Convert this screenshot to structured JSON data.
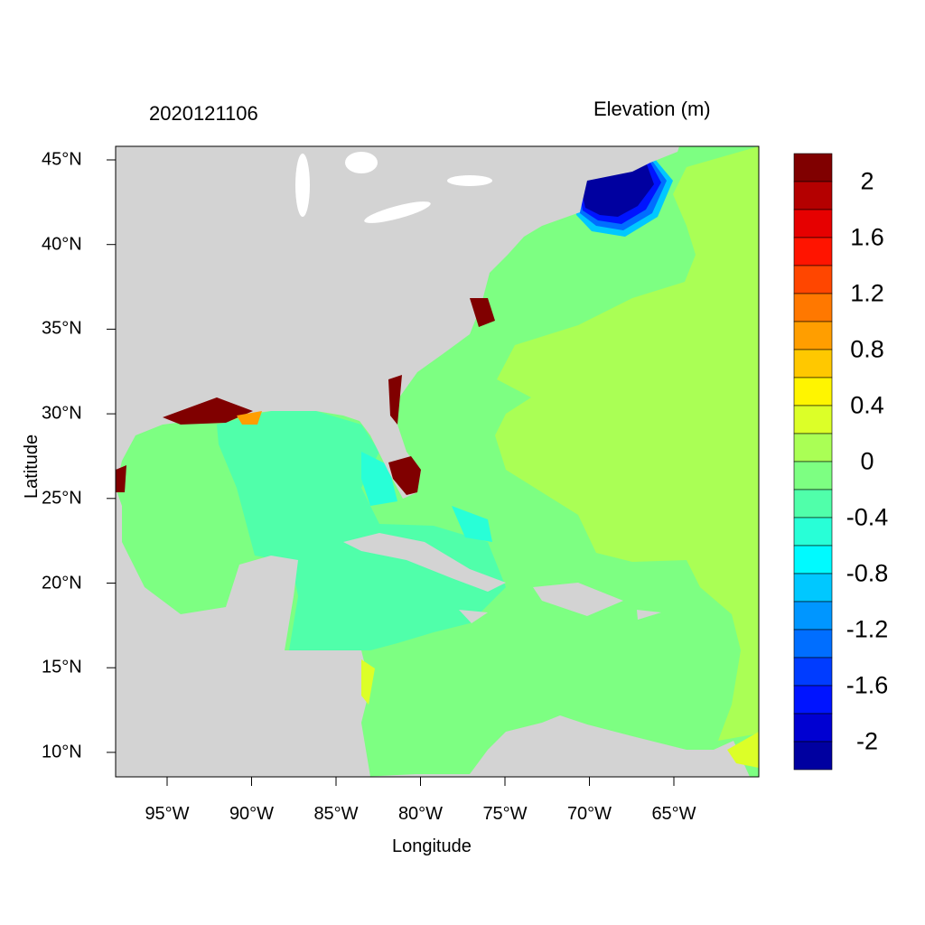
{
  "title_left": "2020121106",
  "title_right": "Elevation (m)",
  "chart_data": {
    "type": "heatmap",
    "subtype": "filled-contour map",
    "xlabel": "Longitude",
    "ylabel": "Latitude",
    "xlim": [
      -98,
      -60
    ],
    "ylim": [
      8.5,
      45.8
    ],
    "xticks": [
      {
        "value": -95,
        "label": "95°W"
      },
      {
        "value": -90,
        "label": "90°W"
      },
      {
        "value": -85,
        "label": "85°W"
      },
      {
        "value": -80,
        "label": "80°W"
      },
      {
        "value": -75,
        "label": "75°W"
      },
      {
        "value": -70,
        "label": "70°W"
      },
      {
        "value": -65,
        "label": "65°W"
      }
    ],
    "yticks": [
      {
        "value": 10,
        "label": "10°N"
      },
      {
        "value": 15,
        "label": "15°N"
      },
      {
        "value": 20,
        "label": "20°N"
      },
      {
        "value": 25,
        "label": "25°N"
      },
      {
        "value": 30,
        "label": "30°N"
      },
      {
        "value": 35,
        "label": "35°N"
      },
      {
        "value": 40,
        "label": "40°N"
      },
      {
        "value": 45,
        "label": "45°N"
      }
    ],
    "land_color": "#D3D3D3",
    "colorbar": {
      "levels": [
        2,
        1.8,
        1.6,
        1.4,
        1.2,
        1.0,
        0.8,
        0.6,
        0.4,
        0.2,
        0,
        -0.2,
        -0.4,
        -0.6,
        -0.8,
        -1.0,
        -1.2,
        -1.4,
        -1.6,
        -1.8,
        -2
      ],
      "labels": [
        {
          "value": 2,
          "label": "2"
        },
        {
          "value": 1.6,
          "label": "1.6"
        },
        {
          "value": 1.2,
          "label": "1.2"
        },
        {
          "value": 0.8,
          "label": "0.8"
        },
        {
          "value": 0.4,
          "label": "0.4"
        },
        {
          "value": 0,
          "label": "0"
        },
        {
          "value": -0.4,
          "label": "-0.4"
        },
        {
          "value": -0.8,
          "label": "-0.8"
        },
        {
          "value": -1.2,
          "label": "-1.2"
        },
        {
          "value": -1.6,
          "label": "-1.6"
        },
        {
          "value": -2,
          "label": "-2"
        }
      ],
      "colors": [
        "#800000",
        "#B40000",
        "#E60000",
        "#FF1400",
        "#FF4600",
        "#FF7800",
        "#FF9E00",
        "#FFC800",
        "#FFF500",
        "#DCFF28",
        "#AAFF55",
        "#7DFF82",
        "#50FFAA",
        "#28FFD7",
        "#00FAFF",
        "#00C8FF",
        "#0096FF",
        "#006EFF",
        "#003CFF",
        "#0014FF",
        "#0000D2",
        "#0000A0"
      ]
    }
  }
}
